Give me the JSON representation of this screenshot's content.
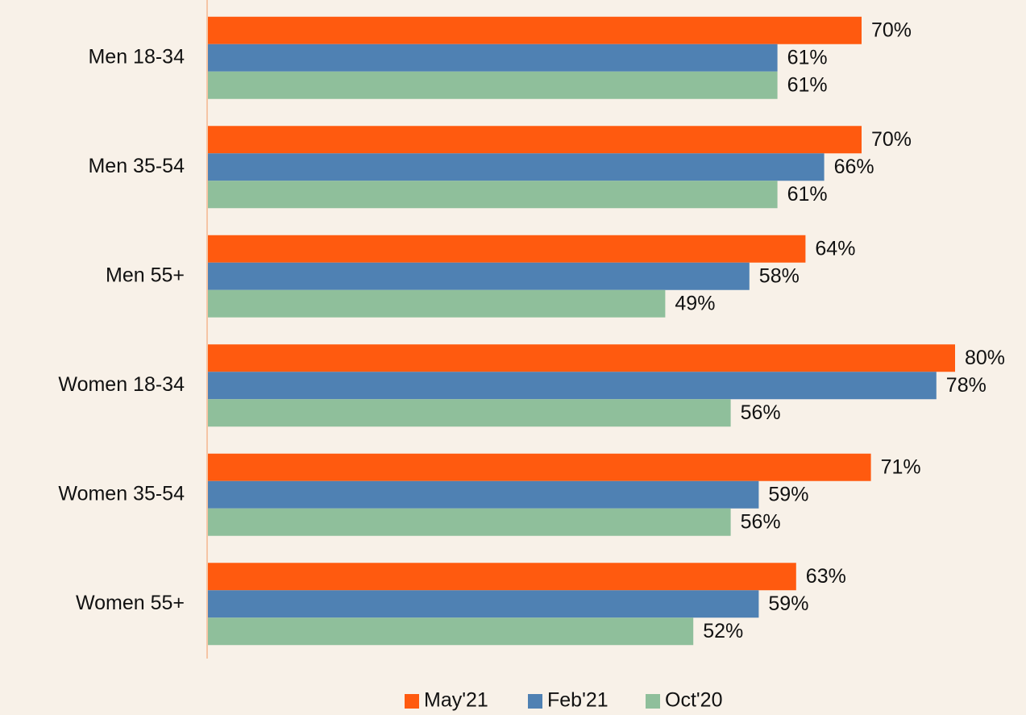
{
  "chart_data": {
    "type": "hbar",
    "categories": [
      "Men 18-34",
      "Men 35-54",
      "Men 55+",
      "Women 18-34",
      "Women 35-54",
      "Women 55+"
    ],
    "series": [
      {
        "name": "May'21",
        "color": "#ff5a0f",
        "values": [
          70,
          70,
          64,
          80,
          71,
          63
        ],
        "value_labels": [
          "70%",
          "70%",
          "64%",
          "80%",
          "71%",
          "63%"
        ]
      },
      {
        "name": "Feb'21",
        "color": "#4f81b3",
        "values": [
          61,
          66,
          58,
          78,
          59,
          59
        ],
        "value_labels": [
          "61%",
          "66%",
          "58%",
          "78%",
          "59%",
          "59%"
        ]
      },
      {
        "name": "Oct'20",
        "color": "#8fbf9b",
        "values": [
          61,
          61,
          49,
          56,
          56,
          52
        ],
        "value_labels": [
          "61%",
          "61%",
          "49%",
          "56%",
          "56%",
          "52%"
        ]
      }
    ],
    "xlim": [
      0,
      80
    ],
    "legend": "bottom"
  }
}
